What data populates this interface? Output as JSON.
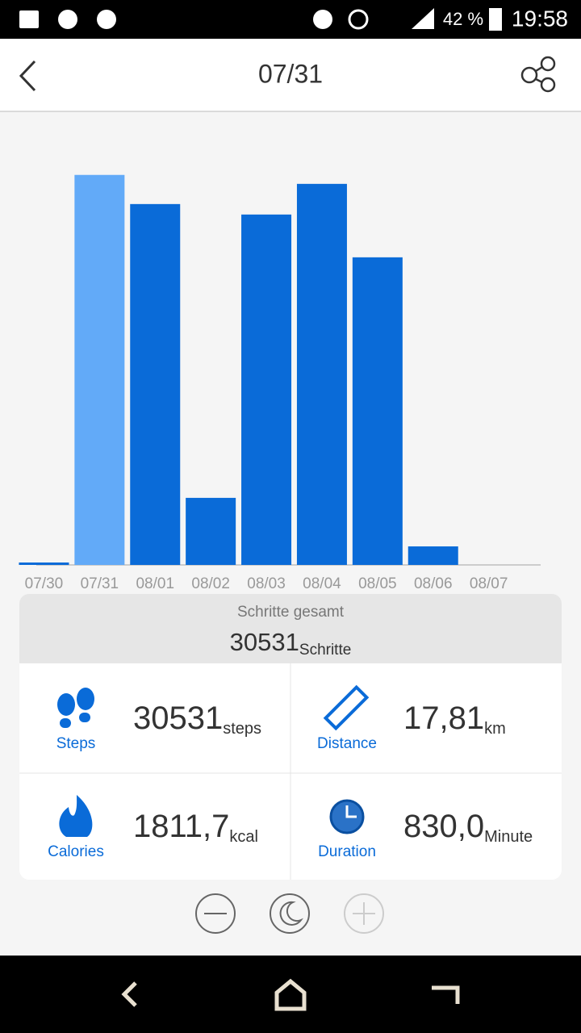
{
  "status_bar": {
    "battery": "42 %",
    "time": "19:58"
  },
  "header": {
    "title": "07/31"
  },
  "chart_data": {
    "type": "bar",
    "categories": [
      "07/30",
      "07/31",
      "08/01",
      "08/02",
      "08/03",
      "08/04",
      "08/05",
      "08/06",
      "08/07"
    ],
    "values": [
      190,
      30531,
      28250,
      5250,
      27430,
      29830,
      24080,
      1450,
      0
    ],
    "color": "#0a6bd8",
    "highlight_color": "#62aaf8",
    "highlight_index": 1,
    "ylim": [
      0,
      35000
    ]
  },
  "summary": {
    "label": "Schritte gesamt",
    "value": "30531",
    "unit": "Schritte"
  },
  "stats": [
    {
      "label": "Steps",
      "value": "30531",
      "unit": "steps"
    },
    {
      "label": "Distance",
      "value": "17,81",
      "unit": "km"
    },
    {
      "label": "Calories",
      "value": "1811,7",
      "unit": "kcal"
    },
    {
      "label": "Duration",
      "value": "830,0",
      "unit": "Minute"
    }
  ]
}
